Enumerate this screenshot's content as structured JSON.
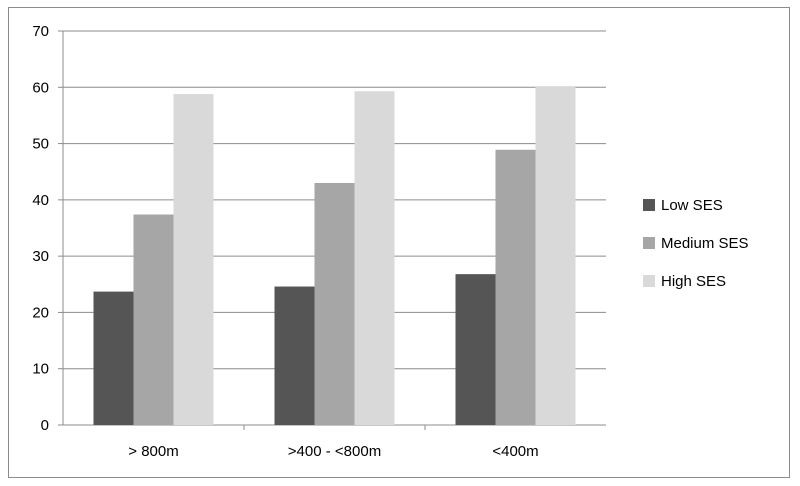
{
  "chart_data": {
    "type": "bar",
    "categories": [
      "> 800m",
      ">400 - <800m",
      "<400m"
    ],
    "series": [
      {
        "name": "Low SES",
        "values": [
          23.7,
          24.6,
          26.8
        ],
        "color": "#555555"
      },
      {
        "name": "Medium SES",
        "values": [
          37.4,
          43.0,
          48.9
        ],
        "color": "#a6a6a6"
      },
      {
        "name": "High SES",
        "values": [
          58.8,
          59.3,
          60.2
        ],
        "color": "#d9d9d9"
      }
    ],
    "ylim": [
      0,
      70
    ],
    "yticks": [
      "0",
      "10",
      "20",
      "30",
      "40",
      "50",
      "60",
      "70"
    ],
    "grid": true,
    "legend": "right"
  }
}
